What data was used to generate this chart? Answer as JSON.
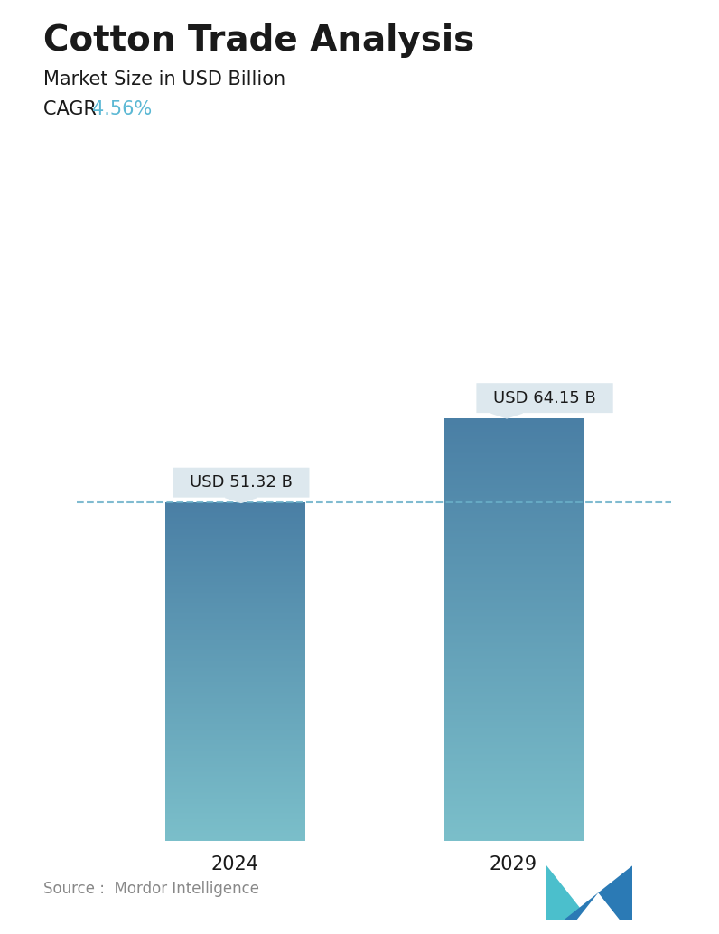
{
  "title": "Cotton Trade Analysis",
  "subtitle": "Market Size in USD Billion",
  "cagr_label": "CAGR ",
  "cagr_value": "4.56%",
  "cagr_color": "#5BB8D4",
  "categories": [
    "2024",
    "2029"
  ],
  "values": [
    51.32,
    64.15
  ],
  "bar_labels": [
    "USD 51.32 B",
    "USD 64.15 B"
  ],
  "bar_top_color": "#4A7FA5",
  "bar_bottom_color": "#7BBFCA",
  "dashed_line_color": "#6AAFC8",
  "dashed_line_value": 51.32,
  "tooltip_bg": "#DDE8EE",
  "tooltip_text_color": "#1a1a1a",
  "source_text": "Source :  Mordor Intelligence",
  "source_color": "#888888",
  "background_color": "#ffffff",
  "title_fontsize": 28,
  "subtitle_fontsize": 15,
  "cagr_fontsize": 15,
  "bar_label_fontsize": 13,
  "tick_fontsize": 15,
  "source_fontsize": 12,
  "ylim": [
    0,
    78
  ],
  "bar_width": 0.22,
  "positions": [
    0.28,
    0.72
  ]
}
